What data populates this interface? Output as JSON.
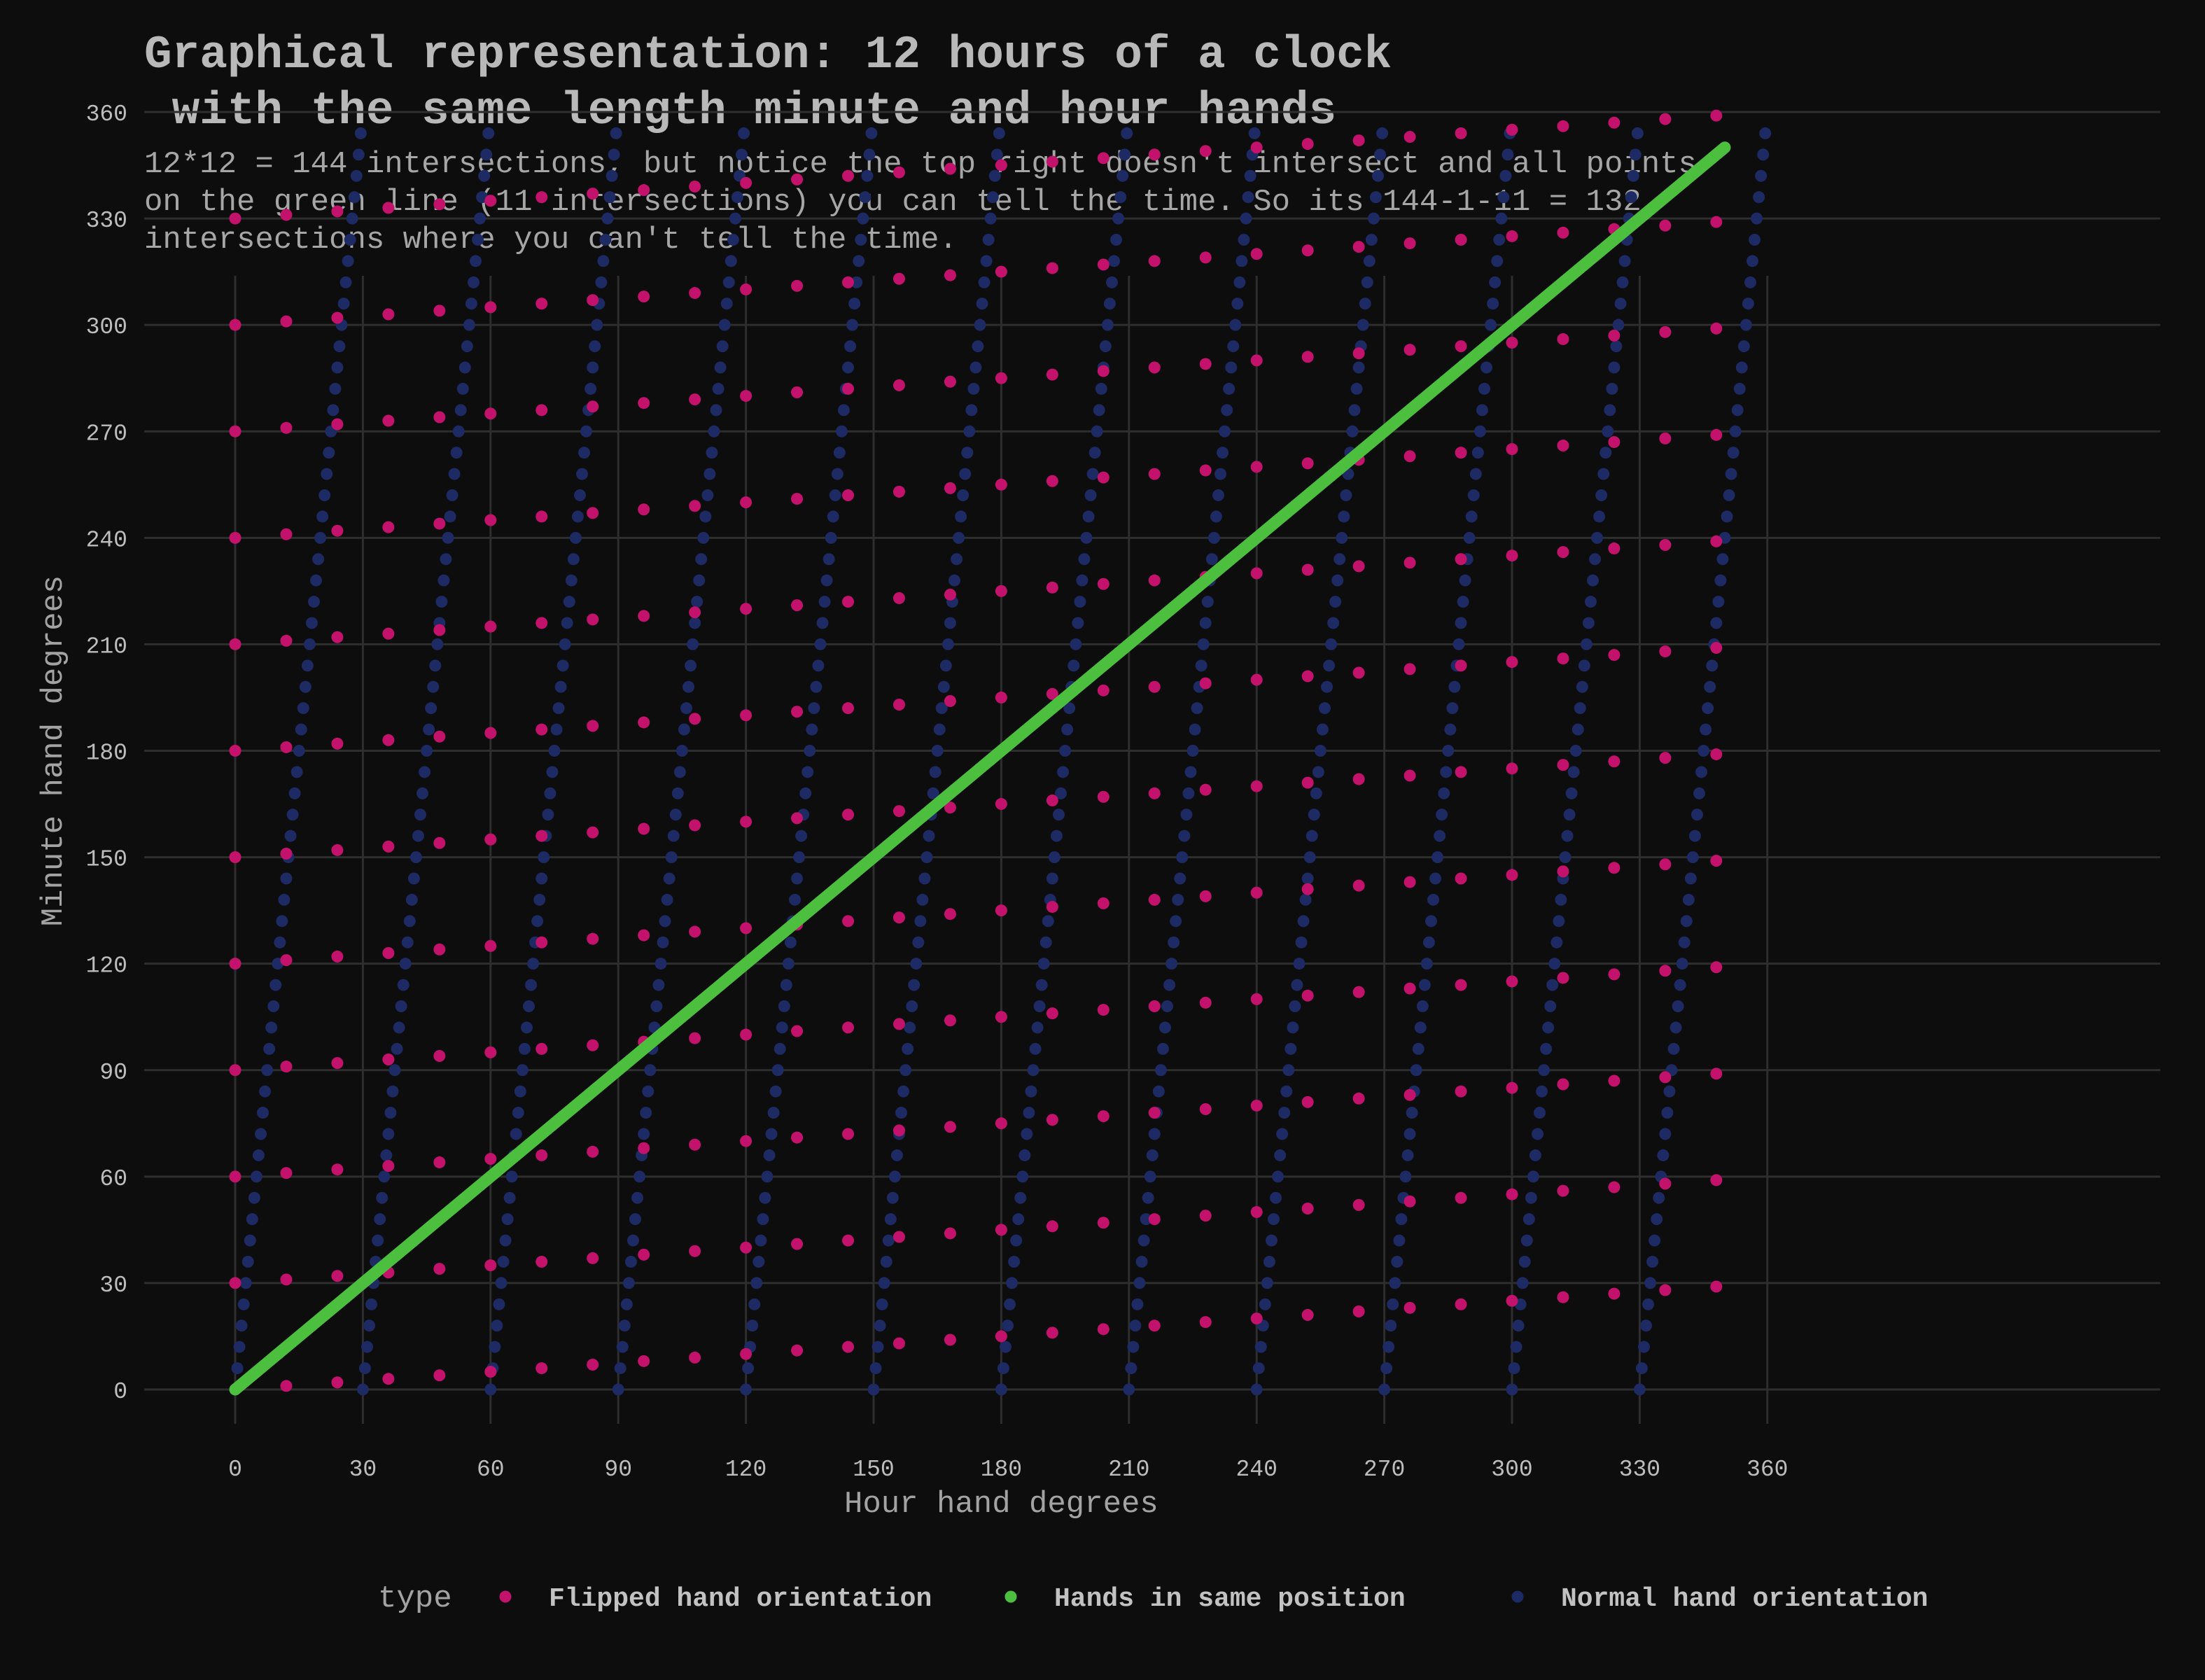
{
  "title": {
    "line1": "Graphical representation: 12 hours of a clock",
    "line2": " with the same length minute and hour hands"
  },
  "subtitle": {
    "line1": "12*12 = 144 intersections, but notice the top right doesn't intersect and all points",
    "line2": "on the green line (11 intersections) you can tell the time. So its 144-1-11 = 132",
    "line3": "intersections where you can't tell the time."
  },
  "chart_data": {
    "type": "scatter",
    "xlabel": "Hour hand degrees",
    "ylabel": "Minute hand degrees",
    "xlim": [
      0,
      360
    ],
    "ylim": [
      0,
      360
    ],
    "xticks": [
      0,
      30,
      60,
      90,
      120,
      150,
      180,
      210,
      240,
      270,
      300,
      330,
      360
    ],
    "yticks": [
      0,
      30,
      60,
      90,
      120,
      150,
      180,
      210,
      240,
      270,
      300,
      330,
      360
    ],
    "grid": true,
    "legend": {
      "position": "bottom",
      "title": "type",
      "entries": [
        {
          "label": "Flipped hand orientation",
          "color": "#c2126b"
        },
        {
          "label": "Hands in same position",
          "color": "#4dbf3f"
        },
        {
          "label": "Normal hand orientation",
          "color": "#1d2a63"
        }
      ]
    },
    "series": [
      {
        "name": "Normal hand orientation",
        "color": "#1d2a63",
        "generator": "For each hour h in 0..11 and each minute m in 0..59: x = 30*h + 0.5*m, y = 6*m",
        "hours": [
          0,
          1,
          2,
          3,
          4,
          5,
          6,
          7,
          8,
          9,
          10,
          11
        ],
        "minute_step": 1
      },
      {
        "name": "Flipped hand orientation",
        "color": "#c2126b",
        "generator": "Swap of the normal series: for each hour h in 0..11 and each minute m in 0..59 step 2: x = 6*m, y = 30*h + 0.5*m",
        "hours": [
          0,
          1,
          2,
          3,
          4,
          5,
          6,
          7,
          8,
          9,
          10,
          11
        ],
        "minute_step": 2
      },
      {
        "name": "Hands in same position",
        "color": "#4dbf3f",
        "x": [
          0,
          350
        ],
        "y": [
          0,
          350
        ]
      }
    ]
  }
}
